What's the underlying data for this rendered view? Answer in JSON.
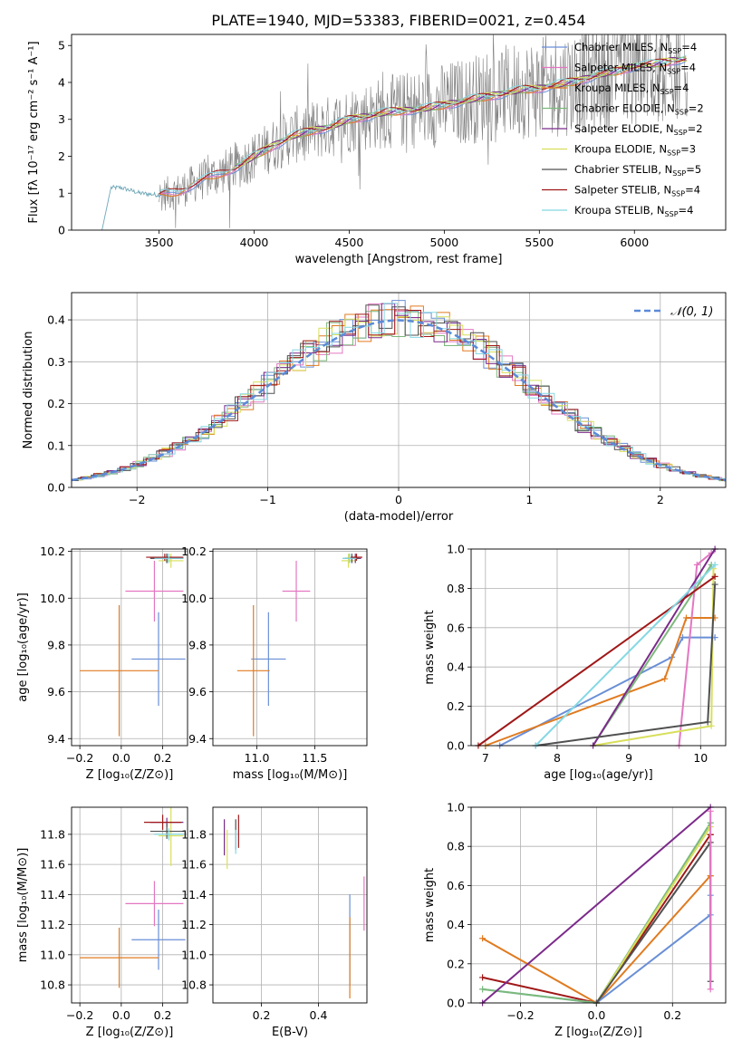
{
  "figure": {
    "title": "PLATE=1940, MJD=53383, FIBERID=0021, z=0.454"
  },
  "colors": {
    "chabrier_miles": "#6a8fd6",
    "salpeter_miles": "#e377c2",
    "kroupa_miles": "#e07b20",
    "chabrier_elodie": "#7cb87c",
    "salpeter_elodie": "#7b2a8a",
    "kroupa_elodie": "#d8df5a",
    "chabrier_stelib": "#505050",
    "salpeter_stelib": "#a01818",
    "kroupa_stelib": "#85d8e3",
    "data": "#808080",
    "normal": "#5b8ad8"
  },
  "chart_data": [
    {
      "id": "spectrum",
      "type": "line",
      "xlabel": "wavelength [Angstrom, rest frame]",
      "ylabel": "Flux [fλ 10⁻¹⁷ erg cm⁻² s⁻¹ A⁻¹]",
      "xlim": [
        3040,
        6480
      ],
      "ylim": [
        0,
        5.3
      ],
      "xticks": [
        3500,
        4000,
        4500,
        5000,
        5500,
        6000
      ],
      "yticks": [
        0,
        1,
        2,
        3,
        4,
        5
      ],
      "continuum_x": [
        3200,
        3240,
        3300,
        3400,
        3500,
        3600,
        3700,
        3800,
        3900,
        4000,
        4100,
        4200,
        4300,
        4400,
        4500,
        4600,
        4700,
        4800,
        4900,
        5000,
        5100,
        5200,
        5300,
        5400,
        5500,
        5600,
        5700,
        5800,
        5900,
        6000,
        6100,
        6200,
        6280
      ],
      "continuum_y": [
        0,
        1.15,
        1.15,
        1.0,
        0.95,
        1.05,
        1.3,
        1.5,
        1.7,
        2.0,
        2.3,
        2.55,
        2.7,
        2.8,
        3.0,
        3.1,
        3.2,
        3.25,
        3.3,
        3.4,
        3.5,
        3.6,
        3.7,
        3.8,
        3.85,
        3.95,
        4.05,
        4.2,
        4.3,
        4.45,
        4.5,
        4.6,
        4.65
      ],
      "legend": [
        {
          "label": "Chabrier MILES, N",
          "sub": "SSP",
          "tail": "=4",
          "color": "chabrier_miles"
        },
        {
          "label": "Salpeter MILES, N",
          "sub": "SSP",
          "tail": "=4",
          "color": "salpeter_miles"
        },
        {
          "label": "Kroupa MILES, N",
          "sub": "SSP",
          "tail": "=4",
          "color": "kroupa_miles"
        },
        {
          "label": "Chabrier ELODIE, N",
          "sub": "SSP",
          "tail": "=2",
          "color": "chabrier_elodie"
        },
        {
          "label": "Salpeter ELODIE, N",
          "sub": "SSP",
          "tail": "=2",
          "color": "salpeter_elodie"
        },
        {
          "label": "Kroupa ELODIE, N",
          "sub": "SSP",
          "tail": "=3",
          "color": "kroupa_elodie"
        },
        {
          "label": "Chabrier STELIB, N",
          "sub": "SSP",
          "tail": "=5",
          "color": "chabrier_stelib"
        },
        {
          "label": "Salpeter STELIB, N",
          "sub": "SSP",
          "tail": "=4",
          "color": "salpeter_stelib"
        },
        {
          "label": "Kroupa STELIB, N",
          "sub": "SSP",
          "tail": "=4",
          "color": "kroupa_stelib"
        }
      ]
    },
    {
      "id": "residuals",
      "type": "line",
      "xlabel": "(data-model)/error",
      "ylabel": "Normed distribution",
      "xlim": [
        -2.5,
        2.5
      ],
      "ylim": [
        0,
        0.465
      ],
      "xticks": [
        -2,
        -1,
        0,
        1,
        2
      ],
      "yticks": [
        0.0,
        0.1,
        0.2,
        0.3,
        0.4
      ],
      "legend_label": "𝒩(0, 1)",
      "bin_width": 0.1,
      "grid": true
    },
    {
      "id": "age_vs_Z",
      "type": "scatter",
      "xlabel": "Z [log₁₀(Z/Z⊙)]",
      "ylabel": "age  [log₁₀(age/yr)]",
      "xlim": [
        -0.24,
        0.32
      ],
      "ylim": [
        9.37,
        10.21
      ],
      "xticks": [
        -0.2,
        0.0,
        0.2
      ],
      "yticks": [
        9.4,
        9.6,
        9.8,
        10.0,
        10.2
      ],
      "grid": true,
      "points": [
        {
          "color": "chabrier_miles",
          "x": 0.18,
          "xerr": 0.13,
          "y": 9.74,
          "yerr": 0.2
        },
        {
          "color": "kroupa_miles",
          "x": -0.01,
          "xerr": 0.19,
          "y": 9.69,
          "yerr": 0.28
        },
        {
          "color": "salpeter_miles",
          "x": 0.16,
          "xerr": 0.14,
          "y": 10.03,
          "yerr": 0.13
        },
        {
          "color": "chabrier_elodie",
          "x": 0.23,
          "xerr": 0.07,
          "y": 10.17,
          "yerr": 0.02
        },
        {
          "color": "kroupa_elodie",
          "x": 0.24,
          "xerr": 0.06,
          "y": 10.16,
          "yerr": 0.03
        },
        {
          "color": "salpeter_elodie",
          "x": 0.22,
          "xerr": 0.08,
          "y": 10.17,
          "yerr": 0.02
        },
        {
          "color": "chabrier_stelib",
          "x": 0.22,
          "xerr": 0.08,
          "y": 10.17,
          "yerr": 0.02
        },
        {
          "color": "salpeter_stelib",
          "x": 0.21,
          "xerr": 0.09,
          "y": 10.175,
          "yerr": 0.015
        },
        {
          "color": "kroupa_stelib",
          "x": 0.23,
          "xerr": 0.07,
          "y": 10.17,
          "yerr": 0.02
        }
      ]
    },
    {
      "id": "age_vs_mass",
      "type": "scatter",
      "xlabel": "mass [log₁₀(M/M⊙)]",
      "xlim": [
        10.62,
        11.95
      ],
      "ylim": [
        9.37,
        10.21
      ],
      "xticks": [
        11.0,
        11.5
      ],
      "yticks": [
        9.4,
        9.6,
        9.8,
        10.0,
        10.2
      ],
      "grid": true,
      "points": [
        {
          "color": "chabrier_miles",
          "x": 11.1,
          "xerr": 0.15,
          "y": 9.74,
          "yerr": 0.2
        },
        {
          "color": "kroupa_miles",
          "x": 10.97,
          "xerr": 0.14,
          "y": 9.69,
          "yerr": 0.28
        },
        {
          "color": "salpeter_miles",
          "x": 11.34,
          "xerr": 0.12,
          "y": 10.03,
          "yerr": 0.13
        },
        {
          "color": "chabrier_elodie",
          "x": 11.8,
          "xerr": 0.06,
          "y": 10.17,
          "yerr": 0.02
        },
        {
          "color": "kroupa_elodie",
          "x": 11.79,
          "xerr": 0.06,
          "y": 10.16,
          "yerr": 0.03
        },
        {
          "color": "salpeter_elodie",
          "x": 11.85,
          "xerr": 0.05,
          "y": 10.17,
          "yerr": 0.02
        },
        {
          "color": "chabrier_stelib",
          "x": 11.82,
          "xerr": 0.06,
          "y": 10.17,
          "yerr": 0.02
        },
        {
          "color": "salpeter_stelib",
          "x": 11.86,
          "xerr": 0.05,
          "y": 10.175,
          "yerr": 0.015
        },
        {
          "color": "kroupa_stelib",
          "x": 11.8,
          "xerr": 0.06,
          "y": 10.17,
          "yerr": 0.02
        }
      ]
    },
    {
      "id": "weight_vs_age",
      "type": "line",
      "xlabel": "age  [log₁₀(age/yr)]",
      "ylabel": "mass weight",
      "xlim": [
        6.8,
        10.35
      ],
      "ylim": [
        0,
        1.0
      ],
      "xticks": [
        7,
        8,
        9,
        10
      ],
      "yticks": [
        0.0,
        0.2,
        0.4,
        0.6,
        0.8,
        1.0
      ],
      "grid": true,
      "series": [
        {
          "color": "chabrier_miles",
          "x": [
            7.2,
            9.6,
            9.75,
            10.2
          ],
          "y": [
            0.0,
            0.45,
            0.55,
            0.55
          ]
        },
        {
          "color": "kroupa_miles",
          "x": [
            7.0,
            9.5,
            9.8,
            10.2
          ],
          "y": [
            0.0,
            0.34,
            0.65,
            0.65
          ]
        },
        {
          "color": "salpeter_miles",
          "x": [
            9.7,
            9.95,
            10.15
          ],
          "y": [
            0.0,
            0.92,
            0.98
          ]
        },
        {
          "color": "chabrier_elodie",
          "x": [
            8.5,
            10.15
          ],
          "y": [
            0.0,
            0.92
          ]
        },
        {
          "color": "kroupa_elodie",
          "x": [
            8.5,
            10.15,
            10.18
          ],
          "y": [
            0.0,
            0.1,
            0.9
          ]
        },
        {
          "color": "salpeter_elodie",
          "x": [
            8.5,
            10.2
          ],
          "y": [
            0.0,
            1.0
          ]
        },
        {
          "color": "chabrier_stelib",
          "x": [
            7.7,
            10.1,
            10.2
          ],
          "y": [
            0.0,
            0.12,
            0.82
          ]
        },
        {
          "color": "salpeter_stelib",
          "x": [
            6.9,
            10.2
          ],
          "y": [
            0.0,
            0.86
          ]
        },
        {
          "color": "kroupa_stelib",
          "x": [
            7.7,
            10.2
          ],
          "y": [
            0.0,
            0.92
          ]
        }
      ]
    },
    {
      "id": "mass_vs_Z",
      "type": "scatter",
      "xlabel": "Z [log₁₀(Z/Z⊙)]",
      "ylabel": "mass [log₁₀(M/M⊙)]",
      "xlim": [
        -0.24,
        0.32
      ],
      "ylim": [
        10.68,
        11.98
      ],
      "xticks": [
        -0.2,
        0.0,
        0.2
      ],
      "yticks": [
        10.8,
        11.0,
        11.2,
        11.4,
        11.6,
        11.8
      ],
      "grid": true,
      "points": [
        {
          "color": "chabrier_miles",
          "x": 0.18,
          "xerr": 0.13,
          "y": 11.1,
          "yerr": 0.2
        },
        {
          "color": "kroupa_miles",
          "x": -0.01,
          "xerr": 0.19,
          "y": 10.98,
          "yerr": 0.2
        },
        {
          "color": "salpeter_miles",
          "x": 0.16,
          "xerr": 0.14,
          "y": 11.34,
          "yerr": 0.15
        },
        {
          "color": "chabrier_elodie",
          "x": 0.23,
          "xerr": 0.07,
          "y": 11.8,
          "yerr": 0.03
        },
        {
          "color": "kroupa_elodie",
          "x": 0.24,
          "xerr": 0.06,
          "y": 11.79,
          "yerr": 0.2
        },
        {
          "color": "salpeter_elodie",
          "x": 0.22,
          "xerr": 0.08,
          "y": 11.88,
          "yerr": 0.03
        },
        {
          "color": "chabrier_stelib",
          "x": 0.22,
          "xerr": 0.08,
          "y": 11.82,
          "yerr": 0.05
        },
        {
          "color": "salpeter_stelib",
          "x": 0.2,
          "xerr": 0.09,
          "y": 11.88,
          "yerr": 0.05
        },
        {
          "color": "kroupa_stelib",
          "x": 0.23,
          "xerr": 0.07,
          "y": 11.8,
          "yerr": 0.04
        }
      ]
    },
    {
      "id": "mass_vs_ebv",
      "type": "scatter",
      "xlabel": "E(B-V)",
      "xlim": [
        0.03,
        0.57
      ],
      "ylim": [
        10.68,
        11.98
      ],
      "xticks": [
        0.2,
        0.4
      ],
      "yticks": [
        10.8,
        11.0,
        11.2,
        11.4,
        11.6,
        11.8
      ],
      "grid": true,
      "points": [
        {
          "color": "chabrier_miles",
          "x": 0.51,
          "y": 11.1,
          "yerr": 0.3
        },
        {
          "color": "kroupa_miles",
          "x": 0.51,
          "y": 10.98,
          "yerr": 0.27
        },
        {
          "color": "salpeter_miles",
          "x": 0.56,
          "y": 11.34,
          "yerr": 0.18
        },
        {
          "color": "kroupa_elodie",
          "x": 0.08,
          "y": 11.7,
          "yerr": 0.13
        },
        {
          "color": "salpeter_elodie",
          "x": 0.07,
          "y": 11.78,
          "yerr": 0.12
        },
        {
          "color": "chabrier_stelib",
          "x": 0.11,
          "y": 11.8,
          "yerr": 0.1
        },
        {
          "color": "salpeter_stelib",
          "x": 0.12,
          "y": 11.82,
          "yerr": 0.11
        },
        {
          "color": "kroupa_stelib",
          "x": 0.11,
          "y": 11.75,
          "yerr": 0.08
        }
      ]
    },
    {
      "id": "weight_vs_Z",
      "type": "line",
      "xlabel": "Z [log₁₀(Z/Z⊙)]",
      "ylabel": "mass weight",
      "xlim": [
        -0.33,
        0.34
      ],
      "ylim": [
        0,
        1.0
      ],
      "xticks": [
        -0.2,
        0.0,
        0.2
      ],
      "yticks": [
        0.0,
        0.2,
        0.4,
        0.6,
        0.8,
        1.0
      ],
      "grid": true,
      "series": [
        {
          "color": "kroupa_miles",
          "x": [
            -0.3,
            0.0,
            0.3,
            0.3
          ],
          "y": [
            0.33,
            0.0,
            0.65,
            0.65
          ]
        },
        {
          "color": "salpeter_stelib",
          "x": [
            -0.3,
            0.0,
            0.3,
            0.3
          ],
          "y": [
            0.13,
            0.0,
            0.86,
            0.86
          ]
        },
        {
          "color": "kroupa_stelib",
          "x": [
            -0.3,
            0.0,
            0.3
          ],
          "y": [
            0.07,
            0.0,
            0.92
          ]
        },
        {
          "color": "chabrier_elodie",
          "x": [
            -0.3,
            0.0,
            0.3
          ],
          "y": [
            0.07,
            0.0,
            0.92
          ]
        },
        {
          "color": "salpeter_elodie",
          "x": [
            -0.3,
            0.3
          ],
          "y": [
            0.0,
            1.0
          ]
        },
        {
          "color": "chabrier_miles",
          "x": [
            0.0,
            0.3,
            0.3
          ],
          "y": [
            0.0,
            0.45,
            0.55
          ]
        },
        {
          "color": "kroupa_elodie",
          "x": [
            0.0,
            0.3
          ],
          "y": [
            0.0,
            0.9
          ]
        },
        {
          "color": "chabrier_stelib",
          "x": [
            0.0,
            0.3,
            0.3
          ],
          "y": [
            0.0,
            0.82,
            0.11
          ]
        },
        {
          "color": "salpeter_miles",
          "x": [
            0.3,
            0.3
          ],
          "y": [
            0.07,
            0.98
          ]
        }
      ]
    }
  ]
}
